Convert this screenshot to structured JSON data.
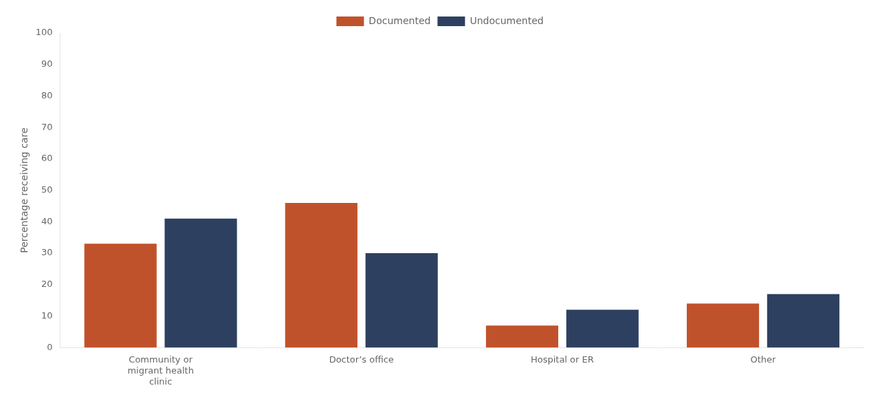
{
  "chart_data": {
    "type": "bar",
    "categories": [
      "Community or\nmigrant health\nclinic",
      "Doctor’s office",
      "Hospital or ER",
      "Other"
    ],
    "series": [
      {
        "name": "Documented",
        "color": "#C0522B",
        "values": [
          33,
          46,
          7,
          14
        ]
      },
      {
        "name": "Undocumented",
        "color": "#2E4060",
        "values": [
          41,
          30,
          12,
          17
        ]
      }
    ],
    "ylabel": "Percentage receiving care",
    "ylim": [
      0,
      100
    ],
    "yticks": [
      0,
      10,
      20,
      30,
      40,
      50,
      60,
      70,
      80,
      90,
      100
    ],
    "grid": false,
    "legend": "top"
  }
}
